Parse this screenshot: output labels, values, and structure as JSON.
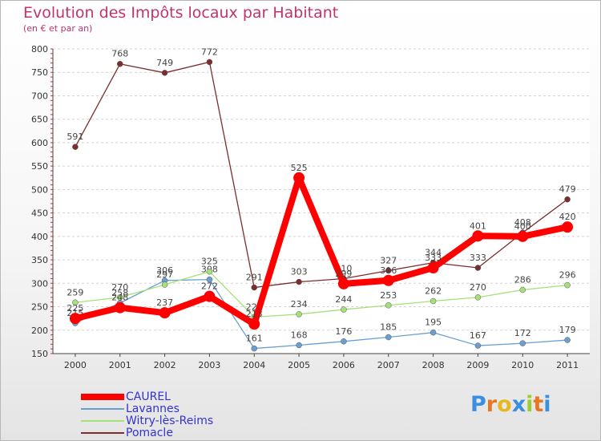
{
  "chart_data": {
    "type": "line",
    "title": "Evolution des Impôts locaux par Habitant",
    "subtitle": "(en € et par an)",
    "xlabel": "",
    "ylabel": "",
    "categories": [
      "2000",
      "2001",
      "2002",
      "2003",
      "2004",
      "2005",
      "2006",
      "2007",
      "2008",
      "2009",
      "2010",
      "2011"
    ],
    "ylim": [
      150,
      800
    ],
    "yticks": [
      150,
      200,
      250,
      300,
      350,
      400,
      450,
      500,
      550,
      600,
      650,
      700,
      750,
      800
    ],
    "grid": "horizontal-dashed",
    "legend_position": "bottom-left",
    "series": [
      {
        "name": "CAUREL",
        "color": "#ff0000",
        "values": [
          225,
          248,
          237,
          272,
          213,
          525,
          299,
          306,
          333,
          401,
          400,
          420
        ]
      },
      {
        "name": "Lavannes",
        "color": "#6a9fd0",
        "values": [
          215,
          258,
          306,
          308,
          161,
          168,
          176,
          185,
          195,
          167,
          172,
          179
        ]
      },
      {
        "name": "Witry-lès-Reims",
        "color": "#a6e07a",
        "values": [
          259,
          270,
          297,
          325,
          228,
          234,
          244,
          253,
          262,
          270,
          286,
          296
        ]
      },
      {
        "name": "Pomacle",
        "color": "#7a2e2e",
        "values": [
          591,
          768,
          749,
          772,
          291,
          303,
          310,
          327,
          344,
          333,
          408,
          479
        ]
      }
    ]
  },
  "logo": {
    "text": "Proxiti",
    "letters": [
      {
        "ch": "P",
        "color": "#3b8fe0"
      },
      {
        "ch": "r",
        "color": "#e87722"
      },
      {
        "ch": "o",
        "color": "#e8b820"
      },
      {
        "ch": "x",
        "color": "#3b8fe0"
      },
      {
        "ch": "i",
        "color": "#9acd32"
      },
      {
        "ch": "t",
        "color": "#e87722"
      },
      {
        "ch": "i",
        "color": "#3b8fe0"
      }
    ]
  }
}
